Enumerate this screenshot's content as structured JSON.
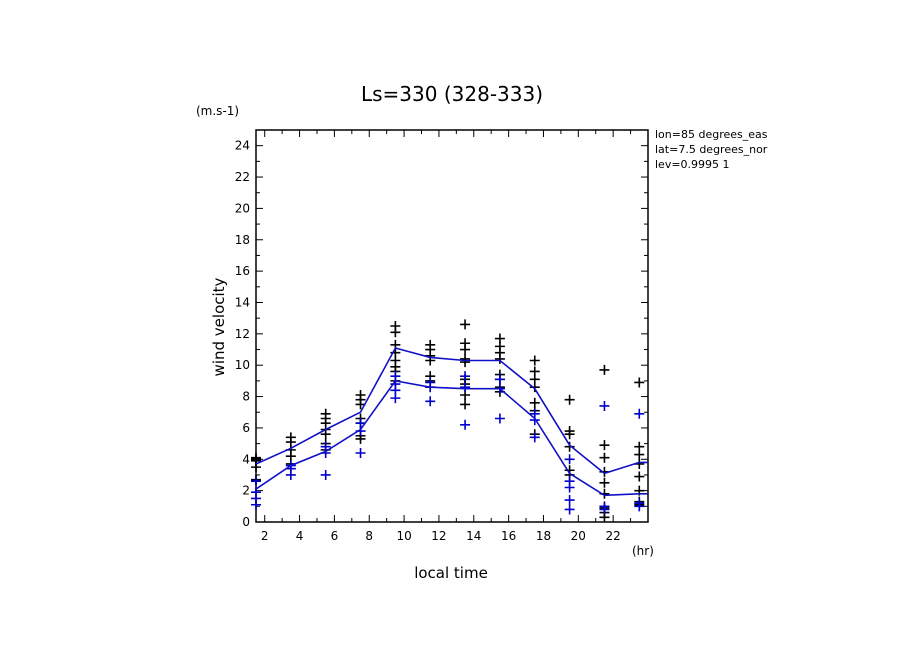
{
  "chart_data": {
    "type": "scatter",
    "title": "Ls=330 (328-333)",
    "xlabel": "local time",
    "ylabel": "wind velocity",
    "x_unit": "(hr)",
    "y_unit": "(m.s-1)",
    "xlim": [
      1.5,
      24
    ],
    "ylim": [
      0,
      25
    ],
    "x_ticks": [
      2,
      4,
      6,
      8,
      10,
      12,
      14,
      16,
      18,
      20,
      22
    ],
    "y_ticks": [
      0,
      2,
      4,
      6,
      8,
      10,
      12,
      14,
      16,
      18,
      20,
      22,
      24
    ],
    "grid": false,
    "annotations": [
      "lon=85 degrees_eas",
      "lat=7.5 degrees_nor",
      "lev=0.9995 1"
    ],
    "series": [
      {
        "color": "#000000",
        "line": {
          "x": [
            1.5,
            3.5,
            5.5,
            7.5,
            9.5,
            11.5,
            13.5,
            15.5,
            17.5,
            19.5,
            21.5,
            23.5,
            24
          ],
          "y": [
            3.7,
            4.7,
            5.9,
            7.0,
            11.1,
            10.5,
            10.3,
            10.3,
            8.5,
            4.9,
            3.1,
            3.8,
            3.8
          ]
        },
        "points": [
          {
            "x": 1.5,
            "y": [
              4.1,
              4.0,
              3.9,
              3.5,
              2.7
            ]
          },
          {
            "x": 3.5,
            "y": [
              5.4,
              5.1,
              4.6,
              4.2,
              3.7
            ]
          },
          {
            "x": 5.5,
            "y": [
              6.9,
              6.6,
              6.3,
              5.9,
              5.6,
              5.0,
              4.6
            ]
          },
          {
            "x": 7.5,
            "y": [
              8.1,
              7.8,
              7.5,
              6.6,
              6.3,
              5.5,
              5.3
            ]
          },
          {
            "x": 9.5,
            "y": [
              12.5,
              12.1,
              11.3,
              10.8,
              10.3,
              9.9,
              9.6,
              9.0
            ]
          },
          {
            "x": 11.5,
            "y": [
              11.3,
              11.0,
              10.6,
              10.3,
              9.3,
              9.0,
              8.6
            ]
          },
          {
            "x": 13.5,
            "y": [
              12.6,
              11.4,
              11.0,
              10.4,
              10.2,
              9.1,
              8.8,
              8.1,
              7.5
            ]
          },
          {
            "x": 15.5,
            "y": [
              11.7,
              11.2,
              10.8,
              10.4,
              9.4,
              9.1,
              8.6,
              8.3
            ]
          },
          {
            "x": 17.5,
            "y": [
              10.3,
              9.6,
              9.1,
              8.6,
              7.6,
              7.1,
              5.6
            ]
          },
          {
            "x": 19.5,
            "y": [
              7.8,
              5.8,
              5.6,
              4.8,
              3.3,
              3.0
            ]
          },
          {
            "x": 21.5,
            "y": [
              9.7,
              4.9,
              4.1,
              3.2,
              2.5,
              1.8,
              0.9,
              0.6,
              0.3
            ]
          },
          {
            "x": 23.5,
            "y": [
              8.9,
              4.8,
              4.3,
              3.7,
              2.9,
              2.0,
              1.3,
              1.1
            ]
          }
        ]
      },
      {
        "color": "#0000cc",
        "line": {
          "x": [
            1.5,
            3.5,
            5.5,
            7.5,
            9.5,
            11.5,
            13.5,
            15.5,
            17.5,
            19.5,
            21.5,
            23.5,
            24
          ],
          "y": [
            2.1,
            3.6,
            4.5,
            5.9,
            9.0,
            8.6,
            8.5,
            8.5,
            6.6,
            3.1,
            1.7,
            1.8,
            1.8
          ]
        },
        "points": [
          {
            "x": 1.5,
            "y": [
              2.6,
              1.9,
              1.5,
              1.1
            ]
          },
          {
            "x": 3.5,
            "y": [
              3.6,
              3.4,
              3.0
            ]
          },
          {
            "x": 5.5,
            "y": [
              4.8,
              4.4,
              3.0
            ]
          },
          {
            "x": 7.5,
            "y": [
              6.3,
              5.8,
              4.4
            ]
          },
          {
            "x": 9.5,
            "y": [
              9.3,
              8.8,
              8.4,
              7.9
            ]
          },
          {
            "x": 11.5,
            "y": [
              8.9,
              8.6,
              7.7
            ]
          },
          {
            "x": 13.5,
            "y": [
              9.3,
              8.6,
              6.2
            ]
          },
          {
            "x": 15.5,
            "y": [
              9.1,
              8.5,
              6.6
            ]
          },
          {
            "x": 17.5,
            "y": [
              6.9,
              6.5,
              5.4
            ]
          },
          {
            "x": 19.5,
            "y": [
              4.0,
              2.6,
              2.2,
              1.4,
              0.8
            ]
          },
          {
            "x": 21.5,
            "y": [
              7.4,
              1.0,
              0.8
            ]
          },
          {
            "x": 23.5,
            "y": [
              6.9,
              1.2,
              1.0
            ]
          }
        ]
      }
    ]
  }
}
